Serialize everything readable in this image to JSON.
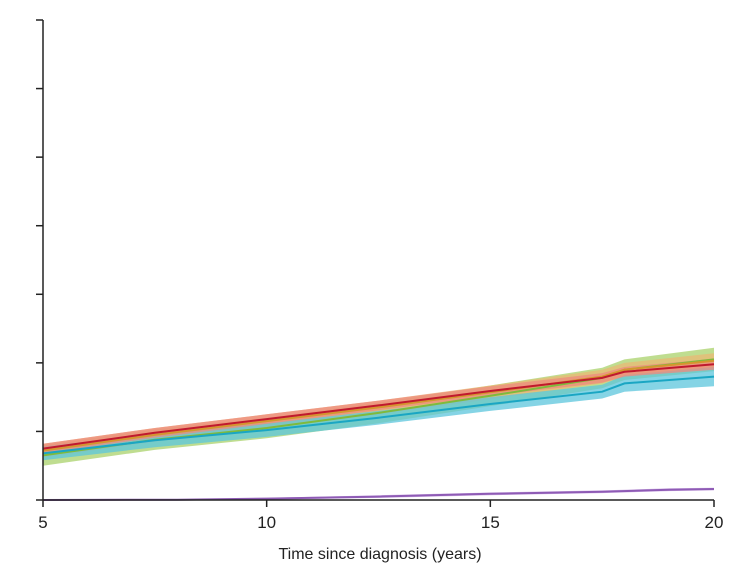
{
  "chart_data": {
    "type": "line",
    "title": "",
    "xlabel": "Time since diagnosis (years)",
    "ylabel": "",
    "xlim": [
      5,
      20
    ],
    "ylim": [
      0,
      7
    ],
    "x_ticks": [
      5,
      10,
      15,
      20
    ],
    "y_ticks": [
      0,
      1,
      2,
      3,
      4,
      5,
      6,
      7
    ],
    "y_tick_labels_visible": false,
    "grid": false,
    "legend": "none",
    "series": [
      {
        "color": "#7fba3c",
        "band_color": "#a9d16b",
        "x": [
          5,
          7.5,
          10,
          12.5,
          15,
          17.5,
          18,
          20
        ],
        "y": [
          0.65,
          0.88,
          1.05,
          1.27,
          1.52,
          1.78,
          1.9,
          2.05
        ],
        "lower": [
          0.5,
          0.73,
          0.9,
          1.12,
          1.37,
          1.63,
          1.75,
          1.88
        ],
        "upper": [
          0.8,
          1.03,
          1.2,
          1.42,
          1.67,
          1.93,
          2.05,
          2.22
        ]
      },
      {
        "color": "#d4962e",
        "band_color": "#e9b874",
        "x": [
          5,
          7.5,
          10,
          12.5,
          15,
          17.5,
          18,
          20
        ],
        "y": [
          0.72,
          0.95,
          1.15,
          1.35,
          1.57,
          1.8,
          1.9,
          2.03
        ],
        "lower": [
          0.62,
          0.85,
          1.05,
          1.25,
          1.47,
          1.7,
          1.8,
          1.92
        ],
        "upper": [
          0.82,
          1.05,
          1.25,
          1.45,
          1.67,
          1.9,
          2.0,
          2.14
        ]
      },
      {
        "color": "#1aa6c3",
        "band_color": "#5cc6dc",
        "x": [
          5,
          7.5,
          10,
          12.5,
          15,
          17.5,
          18,
          20
        ],
        "y": [
          0.68,
          0.87,
          1.02,
          1.2,
          1.4,
          1.58,
          1.7,
          1.8
        ],
        "lower": [
          0.58,
          0.77,
          0.92,
          1.1,
          1.3,
          1.48,
          1.58,
          1.66
        ],
        "upper": [
          0.78,
          0.97,
          1.12,
          1.3,
          1.5,
          1.68,
          1.82,
          1.94
        ]
      },
      {
        "color": "#c0192e",
        "band_color": "#ef8a7e",
        "x": [
          5,
          7.5,
          10,
          12.5,
          15,
          17.5,
          18,
          20
        ],
        "y": [
          0.75,
          0.98,
          1.18,
          1.38,
          1.59,
          1.78,
          1.87,
          1.98
        ],
        "lower": [
          0.68,
          0.91,
          1.11,
          1.31,
          1.52,
          1.71,
          1.8,
          1.9
        ],
        "upper": [
          0.82,
          1.05,
          1.25,
          1.45,
          1.66,
          1.85,
          1.94,
          2.06
        ]
      },
      {
        "color": "#8e5bb5",
        "band_color": "#c7a3e0",
        "x": [
          5,
          8,
          10,
          12.5,
          15,
          17.5,
          19,
          20
        ],
        "y": [
          0.0,
          0.005,
          0.02,
          0.05,
          0.09,
          0.12,
          0.15,
          0.16
        ],
        "lower": [
          0.0,
          0.0,
          0.005,
          0.03,
          0.07,
          0.1,
          0.13,
          0.14
        ],
        "upper": [
          0.005,
          0.01,
          0.03,
          0.07,
          0.11,
          0.14,
          0.17,
          0.18
        ]
      }
    ]
  }
}
